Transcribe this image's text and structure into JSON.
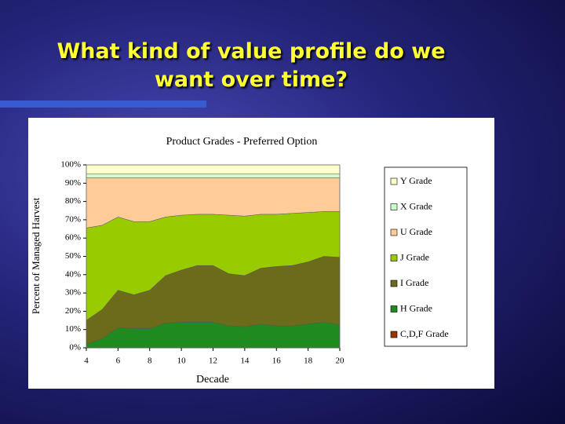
{
  "slide_title": "What kind of value profile do we want over time?",
  "chart_data": {
    "type": "stacked_area",
    "title": "Product Grades - Preferred Option",
    "x_label": "Decade",
    "y_label": "Percent of Managed Harvest",
    "x": [
      4,
      5,
      6,
      7,
      8,
      9,
      10,
      11,
      12,
      13,
      14,
      15,
      16,
      17,
      18,
      19,
      20
    ],
    "xlim": [
      4,
      20
    ],
    "xticks": [
      4,
      6,
      8,
      10,
      12,
      14,
      16,
      18,
      20
    ],
    "ylim": [
      0,
      100
    ],
    "yticks": [
      {
        "value": 0,
        "label": "0%"
      },
      {
        "value": 10,
        "label": "10%"
      },
      {
        "value": 20,
        "label": "20%"
      },
      {
        "value": 30,
        "label": "30%"
      },
      {
        "value": 40,
        "label": "40%"
      },
      {
        "value": 50,
        "label": "50%"
      },
      {
        "value": 60,
        "label": "60%"
      },
      {
        "value": 70,
        "label": "70%"
      },
      {
        "value": 80,
        "label": "80%"
      },
      {
        "value": 90,
        "label": "90%"
      },
      {
        "value": 100,
        "label": "100%"
      }
    ],
    "series": [
      {
        "name": "C,D,F Grade",
        "color": "#993300",
        "values": [
          0,
          0,
          0,
          0,
          0,
          0,
          0,
          0,
          0,
          0,
          0,
          0,
          0,
          0,
          0,
          0,
          0
        ]
      },
      {
        "name": "H Grade",
        "color": "#1f8a1f",
        "values": [
          2,
          5,
          11,
          10.5,
          10.5,
          13.5,
          14,
          14,
          14,
          12,
          11.5,
          13,
          12,
          12,
          13,
          14,
          12.5
        ]
      },
      {
        "name": "I Grade",
        "color": "#6b6b1a",
        "values": [
          13,
          16,
          20.5,
          18.5,
          21,
          26,
          28.5,
          31,
          31,
          28.5,
          28,
          30.5,
          32.5,
          33,
          34,
          36,
          37
        ]
      },
      {
        "name": "J Grade",
        "color": "#99cc00",
        "values": [
          50.5,
          46,
          40,
          40,
          37.5,
          32,
          30,
          28,
          28,
          32,
          32.5,
          29.5,
          28.5,
          28.5,
          27,
          24.5,
          25
        ]
      },
      {
        "name": "U Grade",
        "color": "#ffcc99",
        "values": [
          27.5,
          26,
          21.5,
          24,
          24,
          21.5,
          20.5,
          20,
          20,
          20.5,
          21,
          20,
          20,
          19.5,
          19,
          18.5,
          18.5
        ]
      },
      {
        "name": "X Grade",
        "color": "#ccffcc",
        "values": [
          2,
          2,
          2,
          2,
          2,
          2,
          2,
          2,
          2,
          2,
          2,
          2,
          2,
          2,
          2,
          2,
          2
        ]
      },
      {
        "name": "Y Grade",
        "color": "#ffffcc",
        "values": [
          5,
          5,
          5,
          5,
          5,
          5,
          5,
          5,
          5,
          5,
          5,
          5,
          5,
          5,
          5,
          5,
          5
        ]
      }
    ]
  }
}
